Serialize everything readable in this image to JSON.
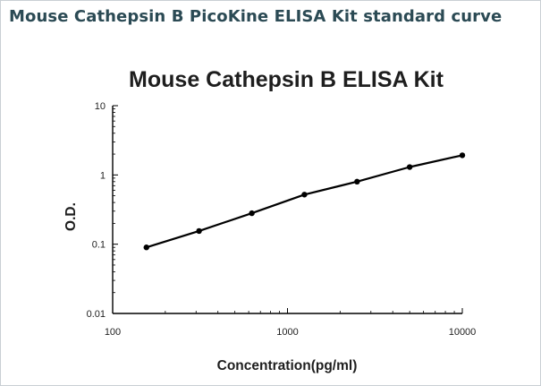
{
  "header": {
    "title": "Mouse Cathepsin B PicoKine ELISA Kit standard curve"
  },
  "chart_data": {
    "type": "scatter",
    "title": "Mouse Cathepsin B ELISA Kit",
    "xlabel": "Concentration(pg/ml)",
    "ylabel": "O.D.",
    "x_scale": "log",
    "y_scale": "log",
    "xlim": [
      100,
      10000
    ],
    "ylim": [
      0.01,
      10
    ],
    "x_ticks": [
      "100",
      "1000",
      "10000"
    ],
    "y_ticks": [
      "10",
      "1",
      "0.1",
      "0.01"
    ],
    "grid": false,
    "series": [
      {
        "x": [
          156,
          312,
          625,
          1250,
          2500,
          5000,
          10000
        ],
        "y": [
          0.09,
          0.155,
          0.28,
          0.52,
          0.8,
          1.3,
          1.92
        ],
        "fit": "line",
        "color": "#000000"
      }
    ]
  }
}
